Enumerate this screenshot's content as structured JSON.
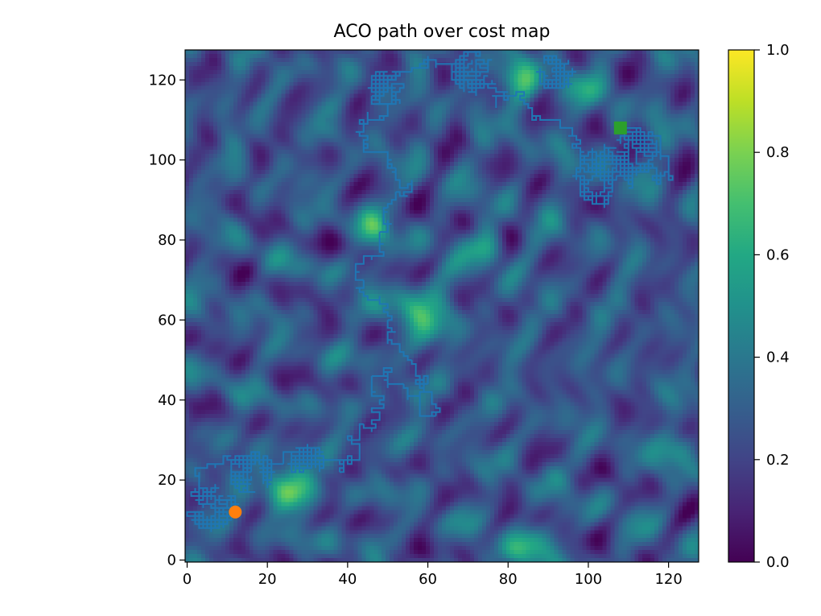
{
  "chart_data": {
    "type": "heatmap",
    "title": "ACO path over cost map",
    "xlabel": "",
    "ylabel": "",
    "xlim": [
      0,
      127
    ],
    "ylim": [
      0,
      127
    ],
    "x_ticks": [
      0,
      20,
      40,
      60,
      80,
      100,
      120
    ],
    "y_ticks": [
      0,
      20,
      40,
      60,
      80,
      100,
      120
    ],
    "colorbar": {
      "colormap": "viridis",
      "range": [
        0.0,
        1.0
      ],
      "ticks": [
        "0.0",
        "0.2",
        "0.4",
        "0.6",
        "0.8",
        "1.0"
      ]
    },
    "grid": false,
    "start": {
      "x": 12,
      "y": 12,
      "marker": "circle",
      "color": "#ff7f0e"
    },
    "goal": {
      "x": 108,
      "y": 108,
      "marker": "square",
      "color": "#2ca02c"
    },
    "path_color": "#1f77b4",
    "path_waypoints": [
      [
        12,
        12
      ],
      [
        4,
        16
      ],
      [
        2,
        22
      ],
      [
        8,
        24
      ],
      [
        14,
        22
      ],
      [
        18,
        26
      ],
      [
        24,
        24
      ],
      [
        28,
        28
      ],
      [
        34,
        26
      ],
      [
        38,
        22
      ],
      [
        40,
        30
      ],
      [
        44,
        34
      ],
      [
        46,
        32
      ],
      [
        48,
        38
      ],
      [
        46,
        46
      ],
      [
        50,
        48
      ],
      [
        54,
        44
      ],
      [
        58,
        38
      ],
      [
        62,
        36
      ],
      [
        60,
        44
      ],
      [
        56,
        50
      ],
      [
        52,
        54
      ],
      [
        50,
        60
      ],
      [
        48,
        66
      ],
      [
        44,
        70
      ],
      [
        42,
        72
      ],
      [
        46,
        76
      ],
      [
        48,
        82
      ],
      [
        50,
        88
      ],
      [
        52,
        92
      ],
      [
        56,
        94
      ],
      [
        52,
        98
      ],
      [
        46,
        102
      ],
      [
        44,
        106
      ],
      [
        48,
        110
      ],
      [
        50,
        114
      ],
      [
        46,
        116
      ],
      [
        50,
        120
      ],
      [
        56,
        122
      ],
      [
        60,
        126
      ],
      [
        66,
        124
      ],
      [
        70,
        120
      ],
      [
        76,
        118
      ],
      [
        82,
        116
      ],
      [
        86,
        112
      ],
      [
        92,
        110
      ],
      [
        96,
        106
      ],
      [
        98,
        100
      ],
      [
        102,
        96
      ],
      [
        104,
        92
      ],
      [
        106,
        96
      ],
      [
        110,
        100
      ],
      [
        116,
        98
      ],
      [
        120,
        96
      ],
      [
        118,
        104
      ],
      [
        112,
        108
      ],
      [
        108,
        108
      ]
    ],
    "path_clusters": [
      {
        "x": 6,
        "y": 14,
        "radius": 7
      },
      {
        "x": 16,
        "y": 22,
        "radius": 6
      },
      {
        "x": 30,
        "y": 24,
        "radius": 5
      },
      {
        "x": 50,
        "y": 118,
        "radius": 5
      },
      {
        "x": 72,
        "y": 122,
        "radius": 6
      },
      {
        "x": 104,
        "y": 96,
        "radius": 8
      },
      {
        "x": 112,
        "y": 102,
        "radius": 6
      },
      {
        "x": 92,
        "y": 122,
        "radius": 5
      }
    ]
  }
}
